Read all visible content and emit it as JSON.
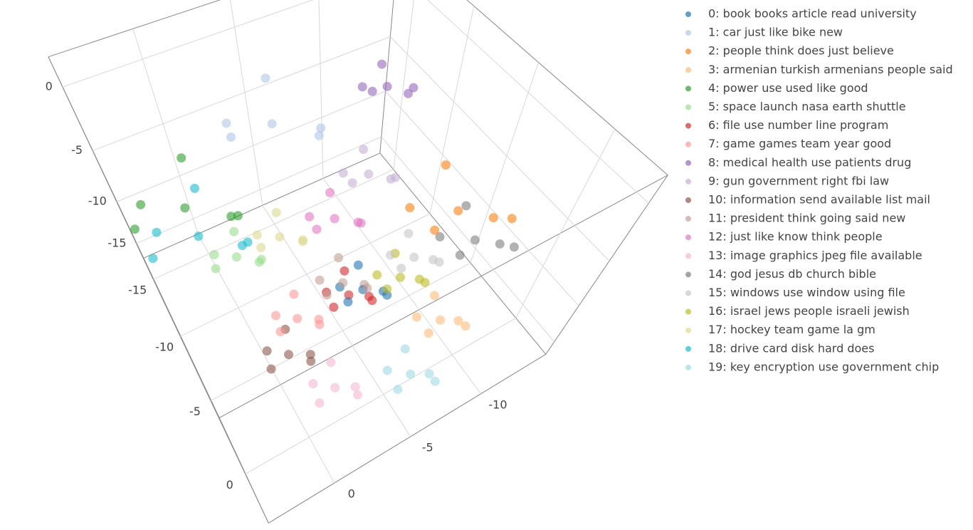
{
  "chart_data": {
    "type": "scatter3d",
    "xlim": [
      -17,
      3
    ],
    "ylim": [
      -15,
      4
    ],
    "zlim": [
      -17,
      2
    ],
    "xticks": [
      -15,
      -10,
      -5,
      0
    ],
    "yticks": [
      -10,
      -5,
      0
    ],
    "zticks": [
      -15,
      -10,
      -5,
      0
    ],
    "grid": true,
    "legend": "right",
    "series": [
      {
        "name": "0: book books article read university",
        "color": "#1f77b4",
        "x": [
          -4.1,
          -2.9,
          -5.1,
          -3.5,
          -5.5,
          -3.8
        ],
        "y": [
          -5.7,
          -6.5,
          -4.8,
          -4.4,
          -6.2,
          -6.9
        ],
        "z": [
          -10.4,
          -9.9,
          -10.8,
          -9.6,
          -10.1,
          -11.3
        ]
      },
      {
        "name": "1: car just like bike new",
        "color": "#aec7e8",
        "x": [
          -11.9,
          -9.5,
          -13.9,
          -10.7,
          -14.7,
          -11.3
        ],
        "y": [
          -4.5,
          -6.1,
          -2.7,
          -1.9,
          -5.5,
          -6.9
        ],
        "z": [
          -2.8,
          -1.8,
          -3.6,
          -1.2,
          -2.2,
          -4.6
        ]
      },
      {
        "name": "2: people think does just believe",
        "color": "#ff7f0e",
        "x": [
          -4.5,
          -2.1,
          -6.5,
          -3.3,
          -7.3,
          -3.9
        ],
        "y": [
          -11.9,
          -13.5,
          -10.1,
          -9.3,
          -12.9,
          -14.3
        ],
        "z": [
          -7.5,
          -6.5,
          -8.3,
          -5.9,
          -6.9,
          -9.3
        ]
      },
      {
        "name": "3: armenian turkish armenians people said",
        "color": "#ffbb78",
        "x": [
          -0.9,
          0.3,
          -1.9,
          -0.3,
          -2.3,
          -0.6
        ],
        "y": [
          -9.0,
          -9.8,
          -8.1,
          -7.7,
          -9.5,
          -10.2
        ],
        "z": [
          -12.3,
          -11.8,
          -12.7,
          -11.5,
          -12.0,
          -13.2
        ]
      },
      {
        "name": "4: power use used like good",
        "color": "#2ca02c",
        "x": [
          -10.4,
          -8.0,
          -12.4,
          -9.2,
          -13.2,
          -9.8
        ],
        "y": [
          1.2,
          -0.4,
          3.0,
          3.8,
          0.2,
          -1.2
        ],
        "z": [
          -4.7,
          -3.7,
          -5.5,
          -3.1,
          -4.1,
          -6.5
        ]
      },
      {
        "name": "5: space launch nasa earth shuttle",
        "color": "#98df8a",
        "x": [
          -8.0,
          -6.8,
          -9.0,
          -7.4,
          -9.4,
          -7.7
        ],
        "y": [
          -0.2,
          -1.0,
          0.7,
          1.1,
          -0.7,
          -1.4
        ],
        "z": [
          -7.5,
          -7.0,
          -7.9,
          -6.7,
          -7.2,
          -8.4
        ]
      },
      {
        "name": "6: file use number line program",
        "color": "#d62728",
        "x": [
          -4.6,
          -3.4,
          -5.6,
          -4.0,
          -6.0,
          -4.3
        ],
        "y": [
          -5.1,
          -5.9,
          -4.2,
          -3.8,
          -5.6,
          -6.3
        ],
        "z": [
          -11.3,
          -10.8,
          -11.7,
          -10.5,
          -11.0,
          -12.2
        ]
      },
      {
        "name": "7: game games team year good",
        "color": "#ff9896",
        "x": [
          -5.2,
          -4.0,
          -6.2,
          -4.6,
          -6.6,
          -4.9
        ],
        "y": [
          -2.1,
          -2.9,
          -1.2,
          -0.8,
          -2.6,
          -3.3
        ],
        "z": [
          -12.3,
          -11.8,
          -12.7,
          -11.5,
          -12.0,
          -13.2
        ]
      },
      {
        "name": "8: medical health use patients drug",
        "color": "#9467bd",
        "x": [
          -10.4,
          -9.2,
          -11.4,
          -9.8,
          -11.8,
          -10.1
        ],
        "y": [
          -10.5,
          -11.3,
          -9.6,
          -9.2,
          -11.0,
          -11.7
        ],
        "z": [
          -1.8,
          -1.3,
          -2.2,
          -1.0,
          -1.5,
          -2.7
        ]
      },
      {
        "name": "9: gun government right fbi law",
        "color": "#c5b0d5",
        "x": [
          -6.9,
          -5.7,
          -7.9,
          -6.3,
          -8.3,
          -6.6
        ],
        "y": [
          -7.4,
          -8.2,
          -6.5,
          -6.1,
          -7.9,
          -8.6
        ],
        "z": [
          -3.7,
          -3.2,
          -4.1,
          -2.9,
          -3.4,
          -4.6
        ]
      },
      {
        "name": "10: information send available list mail",
        "color": "#8c564b",
        "x": [
          -3.8,
          -2.6,
          -4.8,
          -3.2,
          -5.2,
          -3.5
        ],
        "y": [
          -0.8,
          -1.6,
          0.1,
          0.5,
          -1.3,
          -2.0
        ],
        "z": [
          -13.2,
          -12.7,
          -13.6,
          -12.4,
          -12.9,
          -14.1
        ]
      },
      {
        "name": "11: president think going said new",
        "color": "#c49c94",
        "x": [
          -4.6,
          -3.4,
          -5.6,
          -4.0,
          -6.0,
          -4.3
        ],
        "y": [
          -4.7,
          -5.5,
          -3.8,
          -3.4,
          -5.2,
          -5.9
        ],
        "z": [
          -9.4,
          -8.9,
          -9.8,
          -8.6,
          -9.1,
          -10.3
        ]
      },
      {
        "name": "12: just like know think people",
        "color": "#e377c2",
        "x": [
          -5.9,
          -4.7,
          -6.9,
          -5.3,
          -7.3,
          -5.6
        ],
        "y": [
          -4.9,
          -5.7,
          -4.0,
          -3.6,
          -5.4,
          -6.1
        ],
        "z": [
          -4.7,
          -4.2,
          -5.1,
          -3.9,
          -4.4,
          -5.6
        ]
      },
      {
        "name": "13: image graphics jpeg file available",
        "color": "#f7b6d2",
        "x": [
          -1.3,
          -0.1,
          -2.3,
          -0.7,
          -2.7,
          -1.0
        ],
        "y": [
          -2.4,
          -3.2,
          -1.5,
          -1.1,
          -2.9,
          -3.6
        ],
        "z": [
          -15.1,
          -14.6,
          -15.5,
          -14.3,
          -14.8,
          -16.0
        ]
      },
      {
        "name": "14: god jesus db church bible",
        "color": "#7f7f7f",
        "x": [
          -3.2,
          -1.4,
          -4.7,
          -2.3,
          -5.3,
          -2.8
        ],
        "y": [
          -12.5,
          -13.7,
          -11.2,
          -10.6,
          -13.3,
          -14.3
        ],
        "z": [
          -9.4,
          -8.7,
          -10.0,
          -8.2,
          -9.0,
          -10.8
        ]
      },
      {
        "name": "15: windows use window using file",
        "color": "#c7c7c7",
        "x": [
          -4.0,
          -2.8,
          -5.0,
          -3.4,
          -5.4,
          -3.7
        ],
        "y": [
          -8.9,
          -9.7,
          -8.0,
          -7.6,
          -9.4,
          -10.1
        ],
        "z": [
          -9.4,
          -8.9,
          -9.8,
          -8.6,
          -9.1,
          -10.3
        ]
      },
      {
        "name": "16: israel jews people israeli jewish",
        "color": "#bcbd22",
        "x": [
          -3.7,
          -2.5,
          -4.7,
          -3.1,
          -5.1,
          -3.4
        ],
        "y": [
          -7.9,
          -8.7,
          -7.0,
          -6.6,
          -8.4,
          -9.1
        ],
        "z": [
          -10.4,
          -9.9,
          -10.8,
          -9.6,
          -10.1,
          -11.3
        ]
      },
      {
        "name": "17: hockey team game la gm",
        "color": "#dbdb8d",
        "x": [
          -8.0,
          -6.8,
          -9.0,
          -7.4,
          -9.4,
          -7.7
        ],
        "y": [
          -2.7,
          -3.5,
          -1.8,
          -1.4,
          -3.2,
          -3.9
        ],
        "z": [
          -7.5,
          -7.0,
          -7.9,
          -6.7,
          -7.2,
          -8.4
        ]
      },
      {
        "name": "18: drive card disk hard does",
        "color": "#17becf",
        "x": [
          -10.3,
          -7.9,
          -12.3,
          -9.1,
          -13.1,
          -9.7
        ],
        "y": [
          1.0,
          -0.6,
          2.8,
          3.6,
          0.0,
          -1.4
        ],
        "z": [
          -7.5,
          -6.5,
          -8.3,
          -5.9,
          -6.9,
          -9.3
        ]
      },
      {
        "name": "19: key encryption use government chip",
        "color": "#9edae5",
        "x": [
          0.5,
          1.7,
          -0.5,
          1.1,
          -0.9,
          0.8
        ],
        "y": [
          -6.3,
          -7.1,
          -5.4,
          -5.0,
          -6.8,
          -7.5
        ],
        "z": [
          -14.2,
          -13.7,
          -14.6,
          -13.4,
          -13.9,
          -15.1
        ]
      }
    ]
  }
}
